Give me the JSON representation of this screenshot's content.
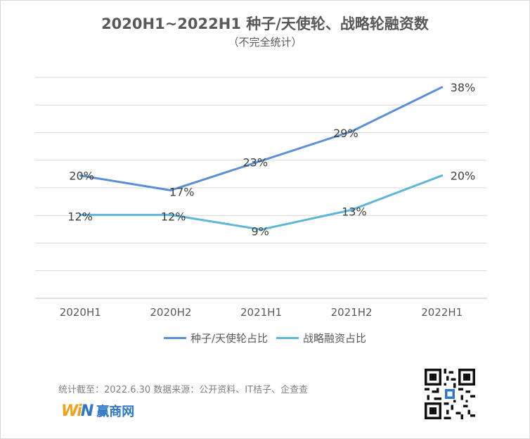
{
  "chart_data": {
    "type": "line",
    "title": "2020H1~2022H1 种子/天使轮、战略轮融资数",
    "subtitle": "（不完全统计）",
    "categories": [
      "2020H1",
      "2020H2",
      "2021H1",
      "2021H2",
      "2022H1"
    ],
    "series": [
      {
        "name": "种子/天使轮占比",
        "values": [
          20,
          17,
          23,
          29,
          38
        ],
        "labels": [
          "20%",
          "17%",
          "23%",
          "29%",
          "38%"
        ],
        "color": "#5b8fd6"
      },
      {
        "name": "战略融资占比",
        "values": [
          12,
          12,
          9,
          13,
          20
        ],
        "labels": [
          "12%",
          "12%",
          "9%",
          "13%",
          "20%"
        ],
        "color": "#5fb6da"
      }
    ],
    "ylim": [
      -5,
      40
    ],
    "grid": true,
    "legend": "bottom"
  },
  "footer": {
    "note": "统计截至：2022.6.30  数据来源：公开资料、IT桔子、企查查",
    "brand_mark_w": "Wi",
    "brand_mark_n": "N",
    "brand_text": "赢商网"
  }
}
